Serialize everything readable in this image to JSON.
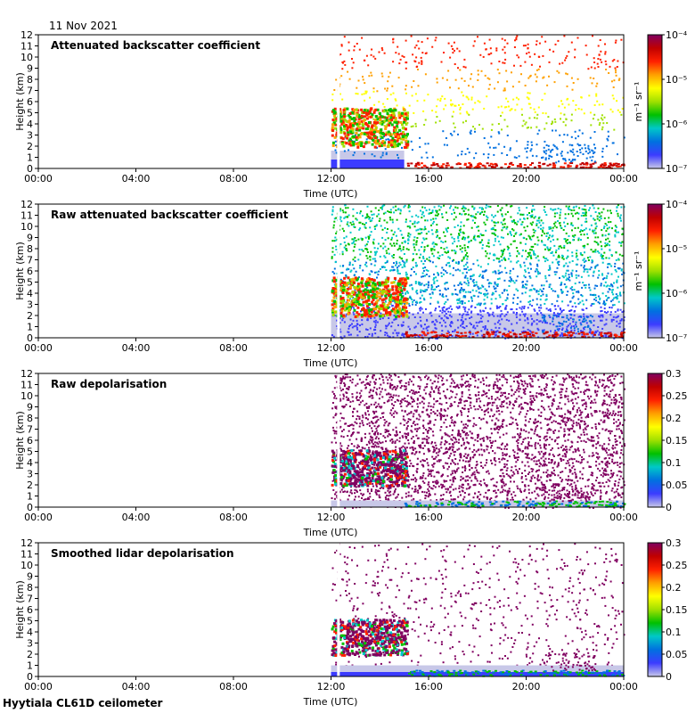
{
  "date_label": "11 Nov 2021",
  "footer_label": "Hyytiala CL61D ceilometer",
  "colormap": [
    "#ffffff",
    "#c8c8e8",
    "#3c3cff",
    "#0070e0",
    "#00c8c8",
    "#00c000",
    "#a0e000",
    "#ffff00",
    "#ffa000",
    "#ff2000",
    "#c00000",
    "#800060"
  ],
  "chart_data": [
    {
      "type": "heatmap",
      "title": "Attenuated backscatter coefficient",
      "xlabel": "Time (UTC)",
      "ylabel": "Height (km)",
      "x_ticks": [
        "00:00",
        "04:00",
        "08:00",
        "12:00",
        "16:00",
        "20:00",
        "00:00"
      ],
      "y_ticks": [
        "0",
        "1",
        "2",
        "3",
        "4",
        "5",
        "6",
        "7",
        "8",
        "9",
        "10",
        "11",
        "12"
      ],
      "ylim": [
        0,
        12
      ],
      "xlim_hours": [
        0,
        24
      ],
      "data_start_hour": 12.0,
      "scale": "log",
      "cbar_ticks": [
        "10⁻⁷",
        "10⁻⁶",
        "10⁻⁵",
        "10⁻⁴"
      ],
      "cbar_label": "m⁻¹ sr⁻¹"
    },
    {
      "type": "heatmap",
      "title": "Raw attenuated backscatter coefficient",
      "xlabel": "Time (UTC)",
      "ylabel": "Height (km)",
      "x_ticks": [
        "00:00",
        "04:00",
        "08:00",
        "12:00",
        "16:00",
        "20:00",
        "00:00"
      ],
      "y_ticks": [
        "0",
        "1",
        "2",
        "3",
        "4",
        "5",
        "6",
        "7",
        "8",
        "9",
        "10",
        "11",
        "12"
      ],
      "ylim": [
        0,
        12
      ],
      "xlim_hours": [
        0,
        24
      ],
      "data_start_hour": 12.0,
      "scale": "log",
      "cbar_ticks": [
        "10⁻⁷",
        "10⁻⁶",
        "10⁻⁵",
        "10⁻⁴"
      ],
      "cbar_label": "m⁻¹ sr⁻¹"
    },
    {
      "type": "heatmap",
      "title": "Raw depolarisation",
      "xlabel": "Time (UTC)",
      "ylabel": "Height (km)",
      "x_ticks": [
        "00:00",
        "04:00",
        "08:00",
        "12:00",
        "16:00",
        "20:00",
        "00:00"
      ],
      "y_ticks": [
        "0",
        "1",
        "2",
        "3",
        "4",
        "5",
        "6",
        "7",
        "8",
        "9",
        "10",
        "11",
        "12"
      ],
      "ylim": [
        0,
        12
      ],
      "xlim_hours": [
        0,
        24
      ],
      "data_start_hour": 12.0,
      "scale": "linear",
      "cbar_ticks": [
        "0",
        "0.05",
        "0.1",
        "0.15",
        "0.2",
        "0.25",
        "0.3"
      ],
      "cbar_label": ""
    },
    {
      "type": "heatmap",
      "title": "Smoothed lidar depolarisation",
      "xlabel": "Time (UTC)",
      "ylabel": "Height (km)",
      "x_ticks": [
        "00:00",
        "04:00",
        "08:00",
        "12:00",
        "16:00",
        "20:00",
        "00:00"
      ],
      "y_ticks": [
        "0",
        "1",
        "2",
        "3",
        "4",
        "5",
        "6",
        "7",
        "8",
        "9",
        "10",
        "11",
        "12"
      ],
      "ylim": [
        0,
        12
      ],
      "xlim_hours": [
        0,
        24
      ],
      "data_start_hour": 12.0,
      "scale": "linear",
      "cbar_ticks": [
        "0",
        "0.05",
        "0.1",
        "0.15",
        "0.2",
        "0.25",
        "0.3"
      ],
      "cbar_label": ""
    }
  ]
}
